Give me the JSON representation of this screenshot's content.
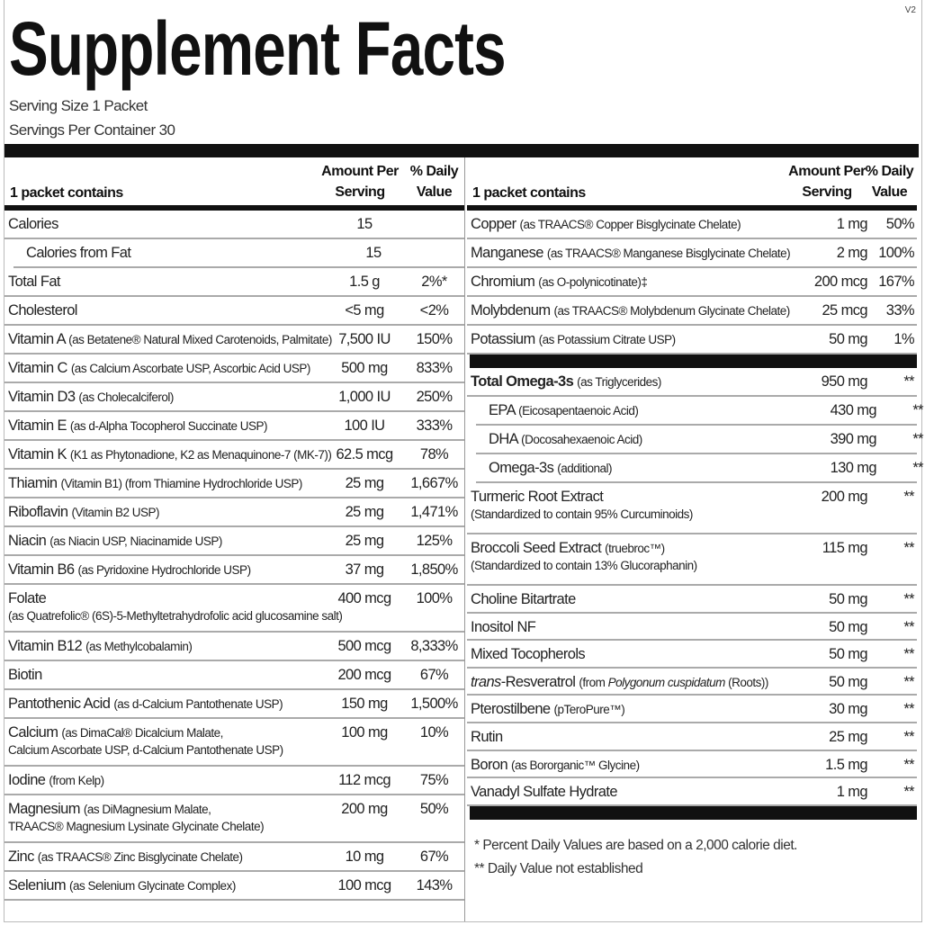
{
  "version": "V2",
  "title": "Supplement Facts",
  "serving_size": "Serving Size 1 Packet",
  "servings_per_container": "Servings Per Container 30",
  "headers": {
    "contains": "1 packet contains",
    "amount_1": "Amount Per",
    "amount_2": "Serving",
    "dv_1": "% Daily",
    "dv_2": "Value"
  },
  "left_rows": [
    {
      "name": "Calories",
      "amount": "15",
      "dv": ""
    },
    {
      "name": "Calories from Fat",
      "amount": "15",
      "dv": "",
      "indent": true
    },
    {
      "name": "Total Fat",
      "amount": "1.5 g",
      "dv": "2%*"
    },
    {
      "name": "Cholesterol",
      "amount": "<5 mg",
      "dv": "<2%"
    },
    {
      "name": "Vitamin A",
      "detail": "(as Betatene® Natural Mixed Carotenoids, Palmitate)",
      "amount": "7,500 IU",
      "dv": "150%"
    },
    {
      "name": "Vitamin C",
      "detail": "(as Calcium Ascorbate USP, Ascorbic Acid USP)",
      "amount": "500 mg",
      "dv": "833%"
    },
    {
      "name": "Vitamin D3",
      "detail": "(as Cholecalciferol)",
      "amount": "1,000 IU",
      "dv": "250%"
    },
    {
      "name": "Vitamin E",
      "detail": "(as d-Alpha Tocopherol Succinate USP)",
      "amount": "100 IU",
      "dv": "333%"
    },
    {
      "name": "Vitamin K",
      "detail": "(K1 as Phytonadione, K2 as Menaquinone-7 (MK-7))",
      "amount": "62.5 mcg",
      "dv": "78%"
    },
    {
      "name": "Thiamin",
      "detail": "(Vitamin B1) (from Thiamine Hydrochloride USP)",
      "amount": "25 mg",
      "dv": "1,667%"
    },
    {
      "name": "Riboflavin",
      "detail": "(Vitamin B2 USP)",
      "amount": "25 mg",
      "dv": "1,471%"
    },
    {
      "name": "Niacin",
      "detail": "(as Niacin USP, Niacinamide USP)",
      "amount": "25 mg",
      "dv": "125%"
    },
    {
      "name": "Vitamin B6",
      "detail": "(as Pyridoxine Hydrochloride USP)",
      "amount": "37 mg",
      "dv": "1,850%"
    },
    {
      "name": "Folate",
      "line2": "(as Quatrefolic® (6S)-5-Methyltetrahydrofolic acid glucosamine salt)",
      "amount": "400 mcg",
      "dv": "100%"
    },
    {
      "name": "Vitamin B12",
      "detail": "(as Methylcobalamin)",
      "amount": "500 mcg",
      "dv": "8,333%"
    },
    {
      "name": "Biotin",
      "amount": "200 mcg",
      "dv": "67%"
    },
    {
      "name": "Pantothenic Acid",
      "detail": "(as d-Calcium Pantothenate USP)",
      "amount": "150 mg",
      "dv": "1,500%"
    },
    {
      "name": "Calcium",
      "detail": "(as DimaCal® Dicalcium Malate,",
      "line2": "Calcium Ascorbate USP, d-Calcium Pantothenate USP)",
      "amount": "100 mg",
      "dv": "10%"
    },
    {
      "name": "Iodine",
      "detail": "(from Kelp)",
      "amount": "112 mcg",
      "dv": "75%"
    },
    {
      "name": "Magnesium",
      "detail": "(as DiMagnesium Malate,",
      "line2": "TRAACS® Magnesium Lysinate Glycinate Chelate)",
      "amount": "200 mg",
      "dv": "50%"
    },
    {
      "name": "Zinc",
      "detail": "(as TRAACS® Zinc Bisglycinate Chelate)",
      "amount": "10 mg",
      "dv": "67%"
    },
    {
      "name": "Selenium",
      "detail": "(as Selenium Glycinate Complex)",
      "amount": "100 mcg",
      "dv": "143%"
    }
  ],
  "right_minerals": [
    {
      "name": "Copper",
      "detail": "(as TRAACS® Copper Bisglycinate Chelate)",
      "amount": "1 mg",
      "dv": "50%"
    },
    {
      "name": "Manganese",
      "detail": "(as TRAACS® Manganese Bisglycinate Chelate)",
      "amount": "2 mg",
      "dv": "100%"
    },
    {
      "name": "Chromium",
      "detail": "(as O-polynicotinate)‡",
      "amount": "200 mcg",
      "dv": "167%"
    },
    {
      "name": "Molybdenum",
      "detail": "(as TRAACS® Molybdenum Glycinate Chelate)",
      "amount": "25 mcg",
      "dv": "33%"
    },
    {
      "name": "Potassium",
      "detail": "(as Potassium Citrate USP)",
      "amount": "50 mg",
      "dv": "1%"
    }
  ],
  "right_omega": [
    {
      "name": "Total Omega-3s",
      "detail": "(as Triglycerides)",
      "amount": "950 mg",
      "dv": "**",
      "bold": true
    },
    {
      "name": "EPA",
      "detail": "(Eicosapentaenoic Acid)",
      "amount": "430 mg",
      "dv": "**",
      "indent": true
    },
    {
      "name": "DHA",
      "detail": "(Docosahexaenoic Acid)",
      "amount": "390 mg",
      "dv": "**",
      "indent": true
    },
    {
      "name": "Omega-3s",
      "detail": "(additional)",
      "amount": "130 mg",
      "dv": "**",
      "indent": true
    },
    {
      "name": "Turmeric Root Extract",
      "line2": "(Standardized to contain 95% Curcuminoids)",
      "amount": "200 mg",
      "dv": "**"
    },
    {
      "name": "Broccoli Seed Extract",
      "detail": "(truebroc™)",
      "line2": "(Standardized to contain 13% Glucoraphanin)",
      "amount": "115 mg",
      "dv": "**"
    }
  ],
  "right_other": [
    {
      "name": "Choline Bitartrate",
      "amount": "50 mg",
      "dv": "**"
    },
    {
      "name": "Inositol NF",
      "amount": "50 mg",
      "dv": "**"
    },
    {
      "name": "Mixed Tocopherols",
      "amount": "50 mg",
      "dv": "**"
    },
    {
      "name_italic": "trans",
      "name": "-Resveratrol",
      "detail": "(from ",
      "detail_italic": "Polygonum cuspidatum",
      "detail_end": " (Roots))",
      "amount": "50 mg",
      "dv": "**"
    },
    {
      "name": "Pterostilbene",
      "detail": "(pTeroPure™)",
      "amount": "30 mg",
      "dv": "**"
    },
    {
      "name": "Rutin",
      "amount": "25 mg",
      "dv": "**"
    },
    {
      "name": "Boron",
      "detail": "(as Bororganic™ Glycine)",
      "amount": "1.5 mg",
      "dv": "**"
    },
    {
      "name": "Vanadyl Sulfate Hydrate",
      "amount": "1 mg",
      "dv": "**"
    }
  ],
  "footnotes": [
    "*  Percent Daily Values are based on a 2,000 calorie diet.",
    "**  Daily Value not established"
  ]
}
